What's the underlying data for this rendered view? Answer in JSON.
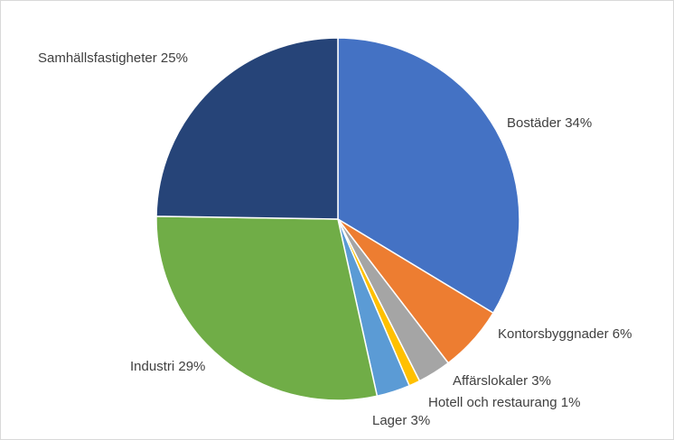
{
  "chart_data": {
    "type": "pie",
    "title": "",
    "start": "top",
    "direction": "clockwise",
    "slices": [
      {
        "label": "Bostäder 34%",
        "name": "Bostäder",
        "value": 34,
        "color": "#4472C4"
      },
      {
        "label": "Kontorsbyggnader 6%",
        "name": "Kontorsbyggnader",
        "value": 6,
        "color": "#ED7D31"
      },
      {
        "label": "Affärslokaler 3%",
        "name": "Affärslokaler",
        "value": 3,
        "color": "#A5A5A5"
      },
      {
        "label": "Hotell och restaurang 1%",
        "name": "Hotell och restaurang",
        "value": 1,
        "color": "#FFC000"
      },
      {
        "label": "Lager 3%",
        "name": "Lager",
        "value": 3,
        "color": "#5B9BD5"
      },
      {
        "label": "Industri 29%",
        "name": "Industri",
        "value": 29,
        "color": "#70AD47"
      },
      {
        "label": "Samhällsfastigheter 25%",
        "name": "Samhällsfastigheter",
        "value": 25,
        "color": "#264478"
      }
    ]
  }
}
